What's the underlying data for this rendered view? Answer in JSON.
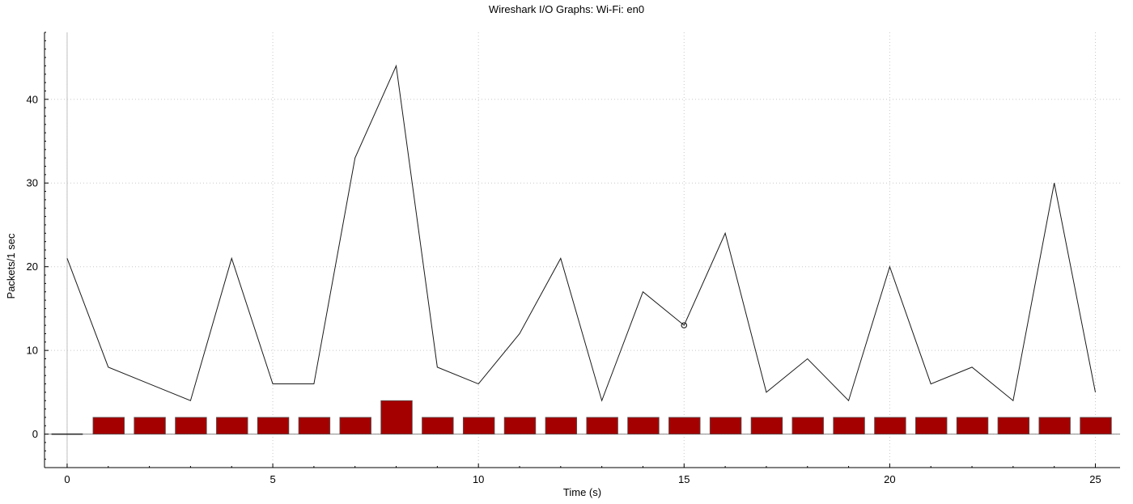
{
  "window": {
    "title": "Wireshark I/O Graphs: Wi-Fi: en0"
  },
  "chart_data": {
    "type": "line",
    "title": "Wireshark I/O Graphs: Wi-Fi: en0",
    "xlabel": "Time (s)",
    "ylabel": "Packets/1 sec",
    "xlim": [
      -0.55,
      25.6
    ],
    "ylim": [
      -4,
      48
    ],
    "xticks": [
      0,
      5,
      10,
      15,
      20,
      25
    ],
    "yticks": [
      0,
      10,
      20,
      30,
      40
    ],
    "grid": true,
    "series": [
      {
        "type": "line",
        "color": "#000000",
        "x": [
          0,
          1,
          2,
          3,
          4,
          5,
          6,
          7,
          8,
          9,
          10,
          11,
          12,
          13,
          14,
          15,
          16,
          17,
          18,
          19,
          20,
          21,
          22,
          23,
          24,
          25
        ],
        "values": [
          21,
          8,
          6,
          4,
          21,
          6,
          6,
          33,
          44,
          8,
          6,
          12,
          21,
          4,
          17,
          13,
          24,
          5,
          9,
          4,
          20,
          6,
          8,
          4,
          30,
          5
        ]
      },
      {
        "type": "bar",
        "color": "#a50000",
        "x": [
          0,
          1,
          2,
          3,
          4,
          5,
          6,
          7,
          8,
          9,
          10,
          11,
          12,
          13,
          14,
          15,
          16,
          17,
          18,
          19,
          20,
          21,
          22,
          23,
          24,
          25
        ],
        "values": [
          0,
          2,
          2,
          2,
          2,
          2,
          2,
          2,
          4,
          2,
          2,
          2,
          2,
          2,
          2,
          2,
          2,
          2,
          2,
          2,
          2,
          2,
          2,
          2,
          2,
          2
        ]
      }
    ],
    "highlight_point": {
      "x": 15,
      "y": 13
    }
  }
}
